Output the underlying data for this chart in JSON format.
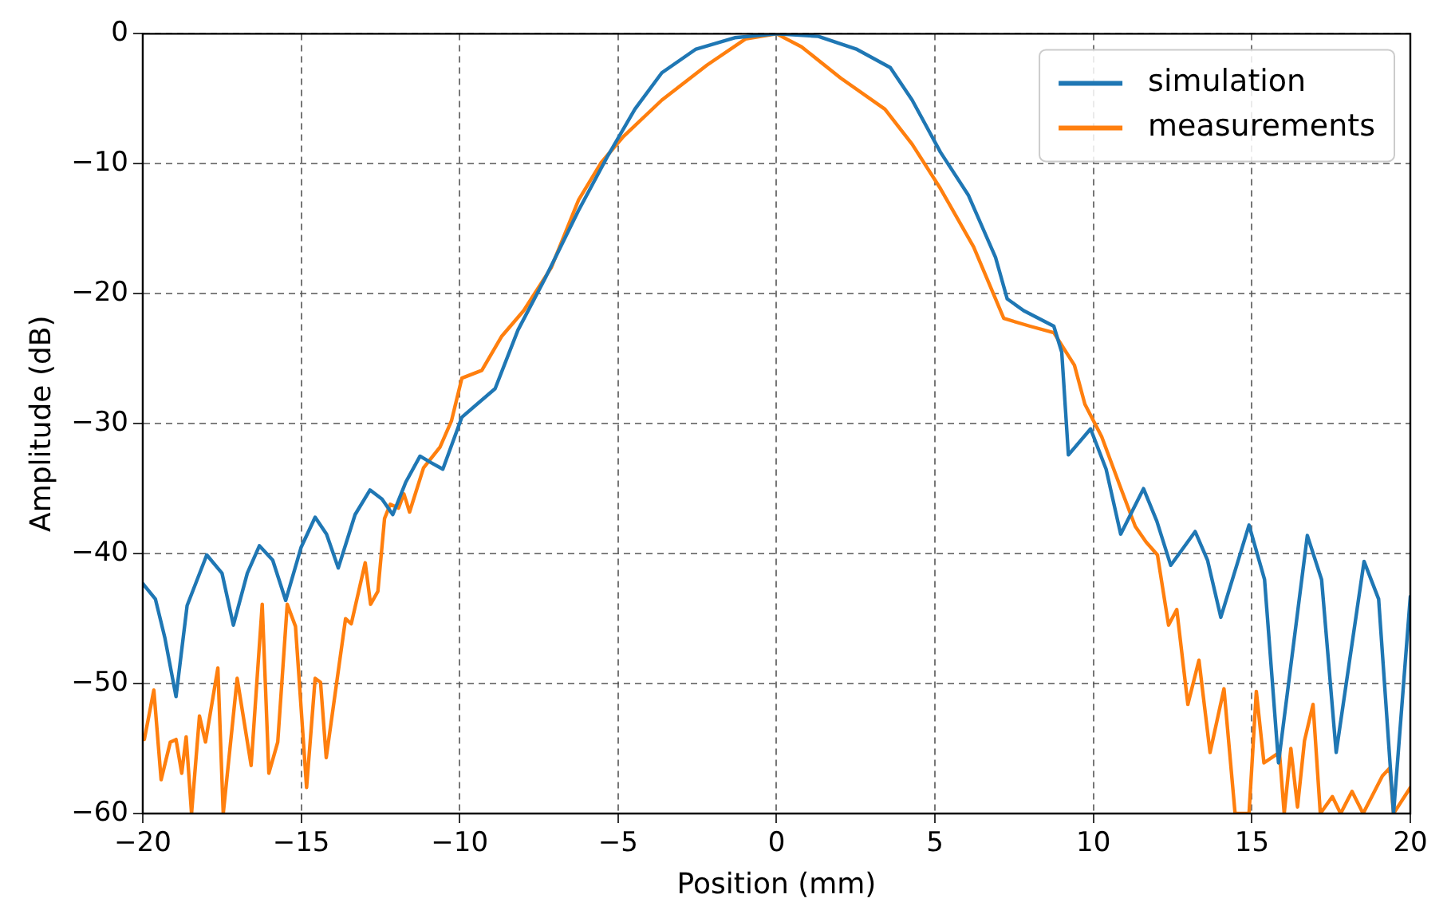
{
  "chart_data": {
    "type": "line",
    "xlabel": "Position (mm)",
    "ylabel": "Amplitude (dB)",
    "xlim": [
      -20,
      20
    ],
    "ylim": [
      -60,
      0
    ],
    "xticks": [
      {
        "value": -20,
        "label": "−20"
      },
      {
        "value": -15,
        "label": "−15"
      },
      {
        "value": -10,
        "label": "−10"
      },
      {
        "value": -5,
        "label": "−5"
      },
      0,
      5,
      10,
      15,
      20
    ],
    "yticks": [
      {
        "value": -60,
        "label": "−60"
      },
      {
        "value": -50,
        "label": "−50"
      },
      {
        "value": -40,
        "label": "−40"
      },
      {
        "value": -30,
        "label": "−30"
      },
      {
        "value": -20,
        "label": "−20"
      },
      {
        "value": -10,
        "label": "−10"
      },
      0
    ],
    "grid": true,
    "legend": "top right",
    "marker": "none",
    "line_style": "solid",
    "series": [
      {
        "name": "simulation",
        "color": "#1f77b4",
        "x": [
          -20,
          -19.6,
          -19.3,
          -18.95,
          -18.6,
          -17.98,
          -17.5,
          -17.14,
          -16.7,
          -16.32,
          -15.9,
          -15.49,
          -15.0,
          -14.56,
          -14.2,
          -13.83,
          -13.3,
          -12.83,
          -12.45,
          -12.11,
          -11.7,
          -11.25,
          -10.9,
          -10.53,
          -9.93,
          -8.88,
          -8.16,
          -7.3,
          -6.25,
          -5.35,
          -4.47,
          -3.62,
          -2.56,
          -1.32,
          0,
          1.32,
          2.54,
          3.59,
          4.28,
          5.17,
          6.05,
          6.91,
          7.28,
          7.8,
          8.75,
          9.0,
          9.21,
          9.91,
          10.4,
          10.86,
          11.58,
          12.0,
          12.44,
          13.21,
          13.6,
          14.02,
          14.91,
          15.4,
          15.84,
          16.75,
          17.2,
          17.66,
          18.54,
          19.0,
          19.47,
          20
        ],
        "values": [
          -42.3,
          -43.5,
          -46.5,
          -51.0,
          -44,
          -40.1,
          -41.5,
          -45.5,
          -41.5,
          -39.4,
          -40.5,
          -43.6,
          -39.5,
          -37.2,
          -38.5,
          -41.1,
          -37,
          -35.1,
          -35.8,
          -37.0,
          -34.5,
          -32.5,
          -33,
          -33.5,
          -29.5,
          -27.3,
          -22.8,
          -18.8,
          -13.6,
          -9.5,
          -5.8,
          -3.0,
          -1.2,
          -0.3,
          0,
          -0.2,
          -1.2,
          -2.6,
          -5.1,
          -9.1,
          -12.4,
          -17.2,
          -20.4,
          -21.3,
          -22.5,
          -24.5,
          -32.4,
          -30.4,
          -33.5,
          -38.5,
          -35.0,
          -37.5,
          -40.9,
          -38.3,
          -40.5,
          -44.9,
          -37.8,
          -42,
          -56.1,
          -38.6,
          -42,
          -55.3,
          -40.6,
          -43.5,
          -60,
          -43.3
        ]
      },
      {
        "name": "measurements",
        "color": "#ff7f0e",
        "x": [
          -19.95,
          -19.65,
          -19.42,
          -19.13,
          -18.95,
          -18.77,
          -18.63,
          -18.46,
          -18.21,
          -18.02,
          -17.63,
          -17.46,
          -17.02,
          -16.58,
          -16.23,
          -16.02,
          -15.74,
          -15.44,
          -15.18,
          -14.83,
          -14.56,
          -14.39,
          -14.21,
          -13.6,
          -13.42,
          -12.98,
          -12.81,
          -12.58,
          -12.37,
          -12.19,
          -11.93,
          -11.76,
          -11.58,
          -11.14,
          -10.62,
          -10.26,
          -9.93,
          -9.3,
          -8.68,
          -7.98,
          -7.11,
          -6.25,
          -5.53,
          -4.83,
          -3.62,
          -2.19,
          -0.98,
          0,
          0.79,
          2.02,
          3.42,
          4.28,
          5.17,
          6.22,
          7.17,
          8.0,
          8.75,
          9.4,
          9.73,
          10.26,
          10.87,
          11.32,
          11.66,
          12.02,
          12.37,
          12.63,
          12.98,
          13.33,
          13.68,
          14.12,
          14.47,
          14.91,
          15.14,
          15.38,
          15.87,
          16.02,
          16.23,
          16.44,
          16.66,
          16.93,
          17.16,
          17.54,
          17.8,
          18.16,
          18.51,
          19.12,
          19.35,
          19.47,
          20
        ],
        "values": [
          -54.3,
          -50.5,
          -57.4,
          -54.5,
          -54.3,
          -56.9,
          -54.1,
          -60,
          -52.5,
          -54.5,
          -48.8,
          -60,
          -49.6,
          -56.3,
          -43.9,
          -56.9,
          -54.5,
          -43.9,
          -45.6,
          -58.0,
          -49.6,
          -49.9,
          -55.7,
          -45.0,
          -45.4,
          -40.7,
          -43.9,
          -42.9,
          -37.3,
          -36.2,
          -36.5,
          -35.4,
          -36.8,
          -33.4,
          -31.8,
          -29.8,
          -26.5,
          -25.9,
          -23.3,
          -21.3,
          -18.0,
          -12.8,
          -9.9,
          -7.9,
          -5.1,
          -2.4,
          -0.4,
          0,
          -1.0,
          -3.4,
          -5.8,
          -8.5,
          -11.9,
          -16.4,
          -21.9,
          -22.5,
          -23.0,
          -25.5,
          -28.5,
          -31.0,
          -35.0,
          -37.9,
          -39.1,
          -40.1,
          -45.5,
          -44.3,
          -51.6,
          -48.2,
          -55.3,
          -50.4,
          -60,
          -60,
          -50.6,
          -56.1,
          -55.3,
          -60,
          -55.0,
          -59.5,
          -54.4,
          -51.6,
          -60,
          -58.7,
          -60,
          -58.3,
          -60,
          -57.1,
          -56.5,
          -60,
          -58
        ]
      }
    ]
  }
}
